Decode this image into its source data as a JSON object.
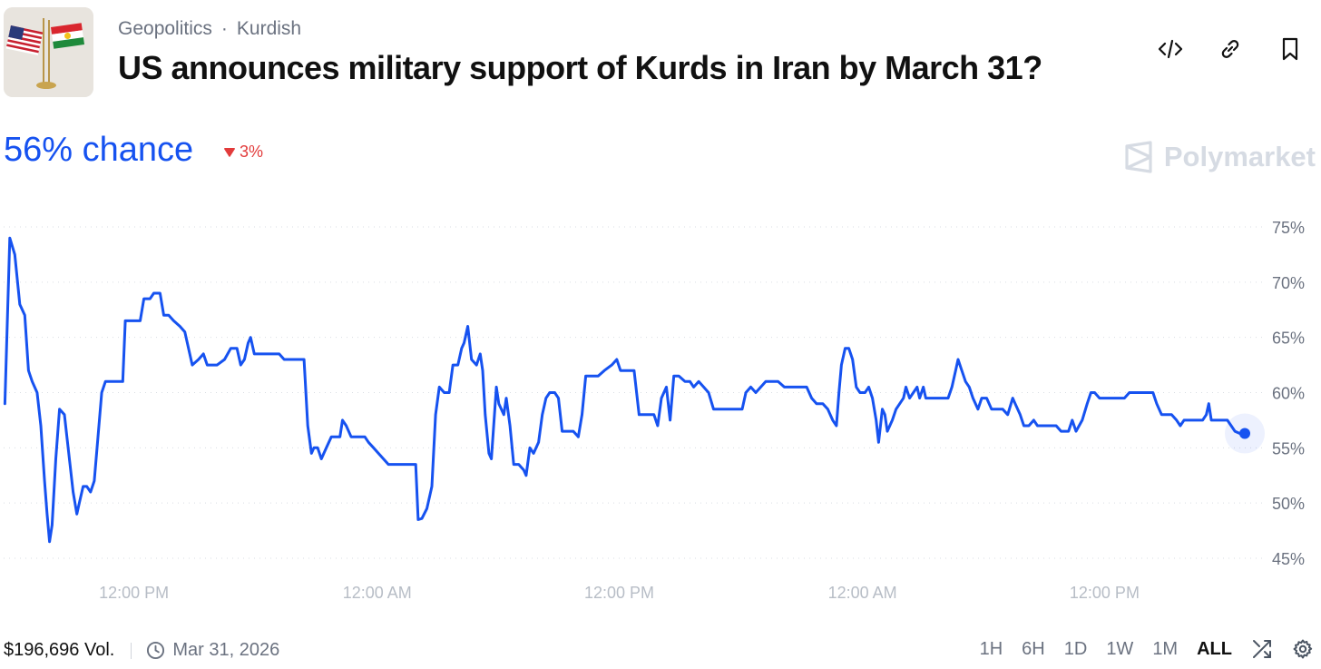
{
  "header": {
    "breadcrumbs": [
      "Geopolitics",
      "Kurdish"
    ],
    "separator": "·",
    "title": "US announces military support of Kurds in Iran by March 31?",
    "thumbnail_icon": "us-and-kurdistan-flags-icon",
    "actions": [
      {
        "name": "embed-button",
        "icon": "code-icon"
      },
      {
        "name": "copy-link-button",
        "icon": "link-icon"
      },
      {
        "name": "bookmark-button",
        "icon": "bookmark-icon"
      }
    ]
  },
  "summary": {
    "chance_text": "56% chance",
    "change_text": "3%",
    "change_direction": "down",
    "brand": "Polymarket"
  },
  "colors": {
    "accent": "#1652f0",
    "negative": "#e23b3b",
    "brand_mark": "#d6dbe3"
  },
  "chart_data": {
    "type": "line",
    "x_tick_labels": [
      "12:00 PM",
      "12:00 AM",
      "12:00 PM",
      "12:00 AM",
      "12:00 PM"
    ],
    "y_tick_labels": [
      "75%",
      "70%",
      "65%",
      "60%",
      "55%",
      "50%",
      "45%"
    ],
    "y_ticks": [
      75,
      70,
      65,
      60,
      55,
      50,
      45
    ],
    "ylim": [
      44.5,
      76
    ],
    "xlim": [
      0,
      1.0
    ],
    "x_tick_positions": [
      0.105,
      0.301,
      0.496,
      0.692,
      0.887
    ],
    "grid": true,
    "grid_style": "dotted",
    "series": [
      {
        "points": [
          [
            0.001,
            59.0
          ],
          [
            0.005,
            74.0
          ],
          [
            0.009,
            72.5
          ],
          [
            0.013,
            68.0
          ],
          [
            0.017,
            67.0
          ],
          [
            0.02,
            62.0
          ],
          [
            0.023,
            61.0
          ],
          [
            0.027,
            60.0
          ],
          [
            0.03,
            57.0
          ],
          [
            0.033,
            52.0
          ],
          [
            0.035,
            49.0
          ],
          [
            0.037,
            46.5
          ],
          [
            0.039,
            48.0
          ],
          [
            0.042,
            54.0
          ],
          [
            0.045,
            58.5
          ],
          [
            0.049,
            58.0
          ],
          [
            0.052,
            55.0
          ],
          [
            0.056,
            51.0
          ],
          [
            0.059,
            49.0
          ],
          [
            0.061,
            50.0
          ],
          [
            0.064,
            51.5
          ],
          [
            0.067,
            51.5
          ],
          [
            0.07,
            51.0
          ],
          [
            0.073,
            52.0
          ],
          [
            0.076,
            56.0
          ],
          [
            0.079,
            60.0
          ],
          [
            0.082,
            61.0
          ],
          [
            0.086,
            61.0
          ],
          [
            0.096,
            61.0
          ],
          [
            0.098,
            66.5
          ],
          [
            0.101,
            66.5
          ],
          [
            0.105,
            66.5
          ],
          [
            0.11,
            66.5
          ],
          [
            0.113,
            68.5
          ],
          [
            0.118,
            68.5
          ],
          [
            0.121,
            69.0
          ],
          [
            0.126,
            69.0
          ],
          [
            0.129,
            67.0
          ],
          [
            0.133,
            67.0
          ],
          [
            0.137,
            66.5
          ],
          [
            0.142,
            66.0
          ],
          [
            0.146,
            65.5
          ],
          [
            0.149,
            64.0
          ],
          [
            0.152,
            62.5
          ],
          [
            0.157,
            63.0
          ],
          [
            0.161,
            63.5
          ],
          [
            0.164,
            62.5
          ],
          [
            0.172,
            62.5
          ],
          [
            0.178,
            63.0
          ],
          [
            0.183,
            64.0
          ],
          [
            0.188,
            64.0
          ],
          [
            0.191,
            62.5
          ],
          [
            0.194,
            63.0
          ],
          [
            0.197,
            64.5
          ],
          [
            0.199,
            65.0
          ],
          [
            0.202,
            63.5
          ],
          [
            0.206,
            63.5
          ],
          [
            0.21,
            63.5
          ],
          [
            0.216,
            63.5
          ],
          [
            0.222,
            63.5
          ],
          [
            0.226,
            63.0
          ],
          [
            0.23,
            63.0
          ],
          [
            0.234,
            63.0
          ],
          [
            0.238,
            63.0
          ],
          [
            0.242,
            63.0
          ],
          [
            0.245,
            57.0
          ],
          [
            0.248,
            54.5
          ],
          [
            0.25,
            55.0
          ],
          [
            0.253,
            55.0
          ],
          [
            0.256,
            54.0
          ],
          [
            0.26,
            55.0
          ],
          [
            0.264,
            56.0
          ],
          [
            0.268,
            56.0
          ],
          [
            0.271,
            56.0
          ],
          [
            0.273,
            57.5
          ],
          [
            0.276,
            57.0
          ],
          [
            0.28,
            56.0
          ],
          [
            0.287,
            56.0
          ],
          [
            0.291,
            56.0
          ],
          [
            0.294,
            55.5
          ],
          [
            0.298,
            55.0
          ],
          [
            0.302,
            54.5
          ],
          [
            0.306,
            54.0
          ],
          [
            0.31,
            53.5
          ],
          [
            0.316,
            53.5
          ],
          [
            0.322,
            53.5
          ],
          [
            0.328,
            53.5
          ],
          [
            0.332,
            53.5
          ],
          [
            0.334,
            48.5
          ],
          [
            0.337,
            48.6
          ],
          [
            0.341,
            49.5
          ],
          [
            0.345,
            51.5
          ],
          [
            0.348,
            58.0
          ],
          [
            0.351,
            60.5
          ],
          [
            0.355,
            60.0
          ],
          [
            0.359,
            60.0
          ],
          [
            0.362,
            62.5
          ],
          [
            0.366,
            62.5
          ],
          [
            0.369,
            64.0
          ],
          [
            0.371,
            64.5
          ],
          [
            0.374,
            66.0
          ],
          [
            0.377,
            63.0
          ],
          [
            0.381,
            62.5
          ],
          [
            0.384,
            63.5
          ],
          [
            0.386,
            62.0
          ],
          [
            0.388,
            58.0
          ],
          [
            0.391,
            54.5
          ],
          [
            0.393,
            54.0
          ],
          [
            0.397,
            60.5
          ],
          [
            0.399,
            59.0
          ],
          [
            0.403,
            58.0
          ],
          [
            0.405,
            59.5
          ],
          [
            0.408,
            57.0
          ],
          [
            0.411,
            53.5
          ],
          [
            0.415,
            53.5
          ],
          [
            0.419,
            53.0
          ],
          [
            0.421,
            52.5
          ],
          [
            0.424,
            55.0
          ],
          [
            0.427,
            54.5
          ],
          [
            0.431,
            55.5
          ],
          [
            0.434,
            58.0
          ],
          [
            0.437,
            59.5
          ],
          [
            0.44,
            60.0
          ],
          [
            0.444,
            60.0
          ],
          [
            0.447,
            59.5
          ],
          [
            0.45,
            56.5
          ],
          [
            0.454,
            56.5
          ],
          [
            0.459,
            56.5
          ],
          [
            0.463,
            56.0
          ],
          [
            0.466,
            58.0
          ],
          [
            0.469,
            61.5
          ],
          [
            0.473,
            61.5
          ],
          [
            0.479,
            61.5
          ],
          [
            0.484,
            62.0
          ],
          [
            0.49,
            62.5
          ],
          [
            0.494,
            63.0
          ],
          [
            0.497,
            62.0
          ],
          [
            0.5,
            62.0
          ],
          [
            0.504,
            62.0
          ],
          [
            0.508,
            62.0
          ],
          [
            0.512,
            58.0
          ],
          [
            0.518,
            58.0
          ],
          [
            0.524,
            58.0
          ],
          [
            0.527,
            57.0
          ],
          [
            0.53,
            59.5
          ],
          [
            0.534,
            60.5
          ],
          [
            0.537,
            57.5
          ],
          [
            0.54,
            61.5
          ],
          [
            0.544,
            61.5
          ],
          [
            0.549,
            61.0
          ],
          [
            0.553,
            61.0
          ],
          [
            0.556,
            60.5
          ],
          [
            0.56,
            61.0
          ],
          [
            0.564,
            60.5
          ],
          [
            0.568,
            60.0
          ],
          [
            0.572,
            58.5
          ],
          [
            0.577,
            58.5
          ],
          [
            0.583,
            58.5
          ],
          [
            0.589,
            58.5
          ],
          [
            0.595,
            58.5
          ],
          [
            0.598,
            60.0
          ],
          [
            0.602,
            60.5
          ],
          [
            0.606,
            60.0
          ],
          [
            0.61,
            60.5
          ],
          [
            0.614,
            61.0
          ],
          [
            0.618,
            61.0
          ],
          [
            0.624,
            61.0
          ],
          [
            0.629,
            60.5
          ],
          [
            0.635,
            60.5
          ],
          [
            0.641,
            60.5
          ],
          [
            0.647,
            60.5
          ],
          [
            0.651,
            59.5
          ],
          [
            0.655,
            59.0
          ],
          [
            0.66,
            59.0
          ],
          [
            0.664,
            58.5
          ],
          [
            0.668,
            57.5
          ],
          [
            0.671,
            57.0
          ],
          [
            0.673,
            60.0
          ],
          [
            0.675,
            62.5
          ],
          [
            0.678,
            64.0
          ],
          [
            0.681,
            64.0
          ],
          [
            0.684,
            63.0
          ],
          [
            0.687,
            60.5
          ],
          [
            0.69,
            60.0
          ],
          [
            0.694,
            60.0
          ],
          [
            0.697,
            60.5
          ],
          [
            0.7,
            59.5
          ],
          [
            0.703,
            57.5
          ],
          [
            0.705,
            55.5
          ],
          [
            0.708,
            58.5
          ],
          [
            0.71,
            58.0
          ],
          [
            0.712,
            56.5
          ],
          [
            0.716,
            57.5
          ],
          [
            0.719,
            58.5
          ],
          [
            0.722,
            59.0
          ],
          [
            0.725,
            59.5
          ],
          [
            0.727,
            60.5
          ],
          [
            0.73,
            59.5
          ],
          [
            0.733,
            60.0
          ],
          [
            0.736,
            60.5
          ],
          [
            0.738,
            59.5
          ],
          [
            0.741,
            60.5
          ],
          [
            0.743,
            59.5
          ],
          [
            0.749,
            59.5
          ],
          [
            0.755,
            59.5
          ],
          [
            0.761,
            59.5
          ],
          [
            0.764,
            60.5
          ],
          [
            0.767,
            62.0
          ],
          [
            0.769,
            63.0
          ],
          [
            0.772,
            62.0
          ],
          [
            0.775,
            61.0
          ],
          [
            0.778,
            60.5
          ],
          [
            0.781,
            59.5
          ],
          [
            0.785,
            58.5
          ],
          [
            0.788,
            59.5
          ],
          [
            0.792,
            59.5
          ],
          [
            0.796,
            58.5
          ],
          [
            0.8,
            58.5
          ],
          [
            0.805,
            58.5
          ],
          [
            0.809,
            58.0
          ],
          [
            0.813,
            59.5
          ],
          [
            0.815,
            59.0
          ],
          [
            0.819,
            58.0
          ],
          [
            0.822,
            57.0
          ],
          [
            0.826,
            57.0
          ],
          [
            0.83,
            57.5
          ],
          [
            0.833,
            57.0
          ],
          [
            0.838,
            57.0
          ],
          [
            0.843,
            57.0
          ],
          [
            0.848,
            57.0
          ],
          [
            0.852,
            56.5
          ],
          [
            0.858,
            56.5
          ],
          [
            0.861,
            57.5
          ],
          [
            0.864,
            56.5
          ],
          [
            0.869,
            57.5
          ],
          [
            0.873,
            59.0
          ],
          [
            0.876,
            60.0
          ],
          [
            0.879,
            60.0
          ],
          [
            0.883,
            59.5
          ],
          [
            0.888,
            59.5
          ],
          [
            0.895,
            59.5
          ],
          [
            0.903,
            59.5
          ],
          [
            0.907,
            60.0
          ],
          [
            0.912,
            60.0
          ],
          [
            0.917,
            60.0
          ],
          [
            0.922,
            60.0
          ],
          [
            0.926,
            60.0
          ],
          [
            0.929,
            59.0
          ],
          [
            0.933,
            58.0
          ],
          [
            0.937,
            58.0
          ],
          [
            0.941,
            58.0
          ],
          [
            0.945,
            57.5
          ],
          [
            0.948,
            57.0
          ],
          [
            0.951,
            57.5
          ],
          [
            0.954,
            57.5
          ],
          [
            0.958,
            57.5
          ],
          [
            0.962,
            57.5
          ],
          [
            0.966,
            57.5
          ],
          [
            0.969,
            58.0
          ],
          [
            0.971,
            59.0
          ],
          [
            0.973,
            57.5
          ],
          [
            0.977,
            57.5
          ],
          [
            0.982,
            57.5
          ],
          [
            0.986,
            57.5
          ],
          [
            0.989,
            57.0
          ],
          [
            0.992,
            56.5
          ],
          [
            0.996,
            56.3
          ],
          [
            1.0,
            56.3
          ]
        ]
      }
    ]
  },
  "footer": {
    "volume": "$196,696 Vol.",
    "date": "Mar 31, 2026",
    "ranges": [
      "1H",
      "6H",
      "1D",
      "1W",
      "1M",
      "ALL"
    ],
    "active_range": "ALL"
  }
}
